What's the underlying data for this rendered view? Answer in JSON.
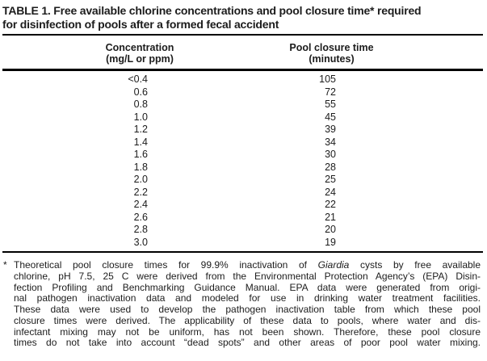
{
  "title": {
    "line1": "TABLE 1. Free available chlorine concentrations and pool closure time* required",
    "line2": "for disinfection of pools after a formed fecal accident"
  },
  "table": {
    "columns": [
      {
        "title": "Concentration",
        "unit": "(mg/L or ppm)"
      },
      {
        "title": "Pool closure time",
        "unit": "(minutes)"
      }
    ],
    "rows": [
      {
        "concentration": "<0.4",
        "closure_time": "105"
      },
      {
        "concentration": "0.6",
        "closure_time": "72"
      },
      {
        "concentration": "0.8",
        "closure_time": "55"
      },
      {
        "concentration": "1.0",
        "closure_time": "45"
      },
      {
        "concentration": "1.2",
        "closure_time": "39"
      },
      {
        "concentration": "1.4",
        "closure_time": "34"
      },
      {
        "concentration": "1.6",
        "closure_time": "30"
      },
      {
        "concentration": "1.8",
        "closure_time": "28"
      },
      {
        "concentration": "2.0",
        "closure_time": "25"
      },
      {
        "concentration": "2.2",
        "closure_time": "24"
      },
      {
        "concentration": "2.4",
        "closure_time": "22"
      },
      {
        "concentration": "2.6",
        "closure_time": "21"
      },
      {
        "concentration": "2.8",
        "closure_time": "20"
      },
      {
        "concentration": "3.0",
        "closure_time": "19"
      }
    ]
  },
  "footnote": {
    "marker": "*",
    "first_line": {
      "pre": "Theoretical pool closure times for 99.9% inactivation of ",
      "italic": "Giardia",
      "post": " cysts by free available"
    },
    "continuation_lines": [
      "chlorine, pH 7.5, 25 C were derived from the Environmental Protection Agency’s (EPA) Disin-",
      "fection Profiling and Benchmarking Guidance Manual. EPA data were generated from origi-",
      "nal pathogen inactivation data and modeled for use in drinking water treatment facilities.",
      "These data were used to develop the pathogen inactivation table from which these pool",
      "closure times were derived. The applicability of these data to pools, where water and dis-",
      "infectant mixing may not be uniform, has not been shown. Therefore, these pool closure",
      "times do not take into account “dead spots” and other areas of poor pool water mixing."
    ]
  },
  "colors": {
    "background": "#ffffff",
    "text": "#1c1c1c",
    "rule": "#000000"
  }
}
